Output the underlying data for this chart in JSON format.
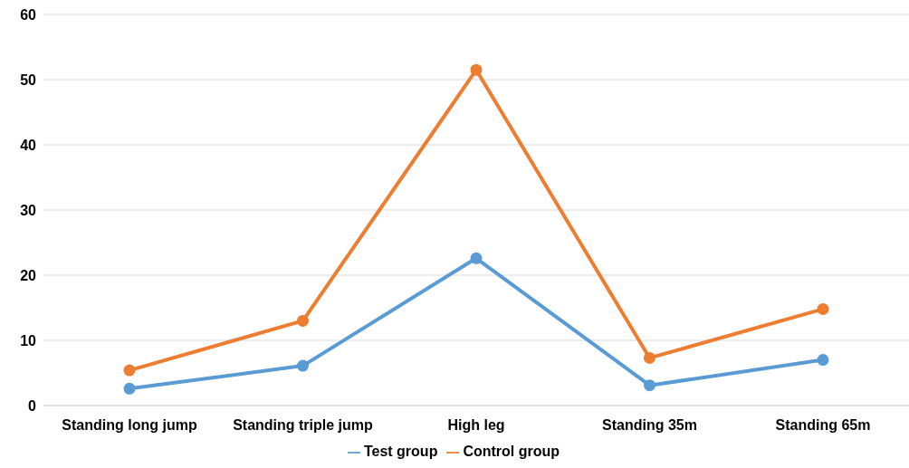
{
  "chart_data": {
    "type": "line",
    "categories": [
      "Standing long jump",
      "Standing triple jump",
      "High leg",
      "Standing 35m",
      "Standing 65m"
    ],
    "series": [
      {
        "name": "Test group",
        "color": "#5b9bd5",
        "values": [
          2.6,
          6.1,
          22.6,
          3.1,
          7.0
        ]
      },
      {
        "name": "Control group",
        "color": "#ed7d31",
        "values": [
          5.4,
          13.0,
          51.5,
          7.3,
          14.8
        ]
      }
    ],
    "ylim": [
      0,
      60
    ],
    "yticks": [
      0,
      10,
      20,
      30,
      40,
      50,
      60
    ],
    "grid": "y",
    "legend": "bottom",
    "marker": "circle",
    "line_style": "solid"
  }
}
